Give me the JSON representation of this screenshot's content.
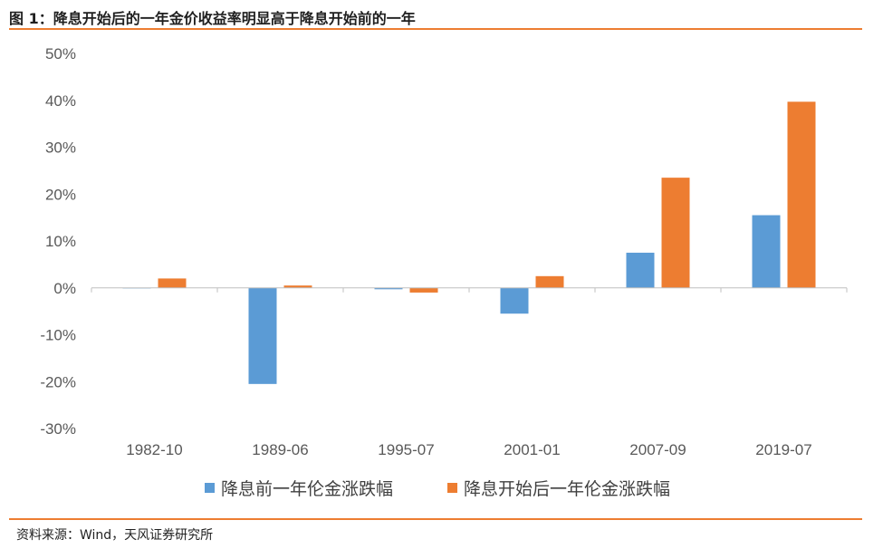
{
  "header": {
    "title": "图 1：降息开始后的一年金价收益率明显高于降息开始前的一年"
  },
  "footer": {
    "source": "资料来源：Wind，天风证券研究所"
  },
  "chart_data": {
    "type": "bar",
    "title": "",
    "categories": [
      "1982-10",
      "1989-06",
      "1995-07",
      "2001-01",
      "2007-09",
      "2019-07"
    ],
    "series": [
      {
        "name": "降息前一年伦金涨跌幅",
        "color": "#5B9BD5",
        "values": [
          0.0,
          -20.5,
          -0.3,
          -5.5,
          7.5,
          15.5
        ]
      },
      {
        "name": "降息开始后一年伦金涨跌幅",
        "color": "#ED7D31",
        "values": [
          2.0,
          0.5,
          -1.0,
          2.5,
          23.5,
          39.7
        ]
      }
    ],
    "ylim": [
      -30,
      50
    ],
    "yticks": [
      "50%",
      "40%",
      "30%",
      "20%",
      "10%",
      "0%",
      "-10%",
      "-20%",
      "-30%"
    ],
    "ytick_values": [
      50,
      40,
      30,
      20,
      10,
      0,
      -10,
      -20,
      -30
    ],
    "legend_position": "bottom",
    "grid": false
  }
}
